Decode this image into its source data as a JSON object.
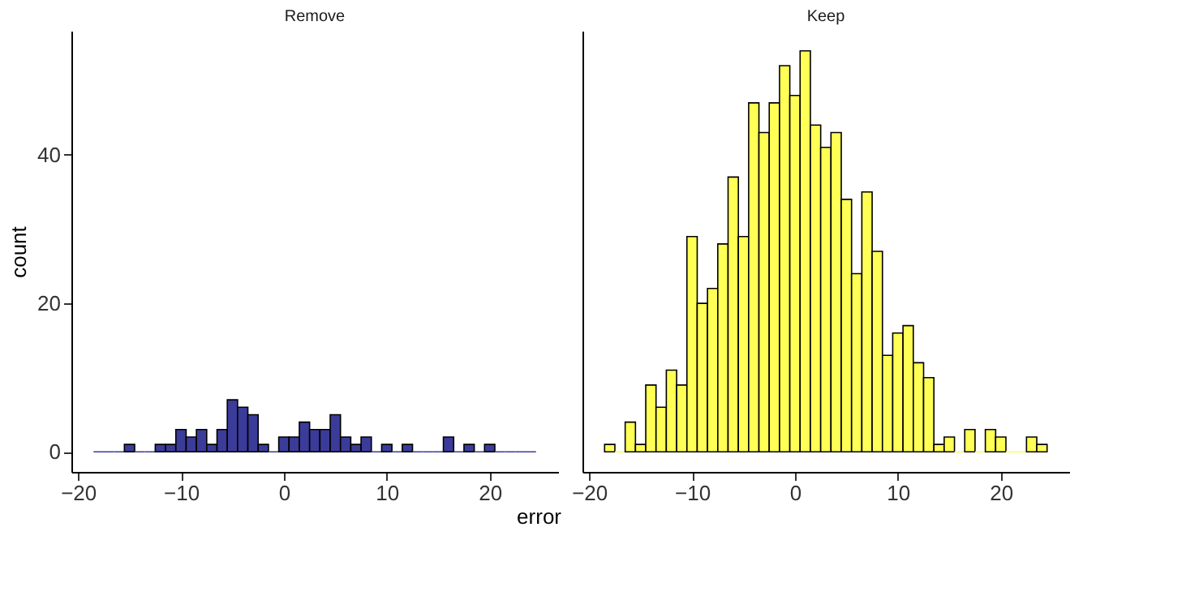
{
  "chart_data": [
    {
      "type": "histogram",
      "title": "Remove",
      "ylabel": "count",
      "xlabel": "error",
      "bins": [
        -18.5,
        -17.5,
        -16.5,
        -15.5,
        -14.5,
        -13.5,
        -12.5,
        -11.5,
        -10.5,
        -9.5,
        -8.5,
        -7.5,
        -6.5,
        -5.5,
        -4.5,
        -3.5,
        -2.5,
        -1.5,
        -0.5,
        0.5,
        1.5,
        2.5,
        3.5,
        4.5,
        5.5,
        6.5,
        7.5,
        8.5,
        9.5,
        10.5,
        11.5,
        12.5,
        13.5,
        14.5,
        15.5,
        16.5,
        17.5,
        18.5,
        19.5,
        20.5,
        21.5,
        22.5,
        23.5,
        24.5
      ],
      "series": [
        {
          "color": "#3b3b9a",
          "values": [
            0,
            0,
            0,
            1,
            0,
            0,
            1,
            1,
            3,
            2,
            3,
            1,
            3,
            7,
            6,
            5,
            1,
            0,
            2,
            2,
            4,
            3,
            3,
            5,
            2,
            1,
            2,
            0,
            1,
            0,
            1,
            0,
            0,
            0,
            2,
            0,
            1,
            0,
            1,
            0,
            0,
            0,
            0
          ]
        }
      ],
      "xlim": [
        -20.65,
        26.65
      ],
      "ylim": [
        -2.7,
        56.7
      ],
      "xticks": [
        -20,
        -10,
        0,
        10,
        20
      ],
      "yticks": [
        0,
        20,
        40
      ],
      "grid": false
    },
    {
      "type": "histogram",
      "title": "Keep",
      "bins": [
        -18.5,
        -17.5,
        -16.5,
        -15.5,
        -14.5,
        -13.5,
        -12.5,
        -11.5,
        -10.5,
        -9.5,
        -8.5,
        -7.5,
        -6.5,
        -5.5,
        -4.5,
        -3.5,
        -2.5,
        -1.5,
        -0.5,
        0.5,
        1.5,
        2.5,
        3.5,
        4.5,
        5.5,
        6.5,
        7.5,
        8.5,
        9.5,
        10.5,
        11.5,
        12.5,
        13.5,
        14.5,
        15.5,
        16.5,
        17.5,
        18.5,
        19.5,
        20.5,
        21.5,
        22.5,
        23.5,
        24.5
      ],
      "series": [
        {
          "color": "#ffff55",
          "values": [
            1,
            0,
            4,
            1,
            9,
            6,
            11,
            9,
            29,
            20,
            22,
            28,
            37,
            29,
            47,
            43,
            47,
            52,
            48,
            54,
            44,
            41,
            43,
            34,
            24,
            35,
            27,
            13,
            16,
            17,
            12,
            10,
            1,
            2,
            0,
            3,
            0,
            3,
            2,
            0,
            0,
            2,
            1
          ]
        }
      ],
      "xlim": [
        -20.65,
        26.65
      ],
      "ylim": [
        -2.7,
        56.7
      ],
      "xticks": [
        -20,
        -10,
        0,
        10,
        20
      ],
      "yticks": [
        0,
        20,
        40
      ],
      "grid": false,
      "tick_labels": "x"
    }
  ]
}
